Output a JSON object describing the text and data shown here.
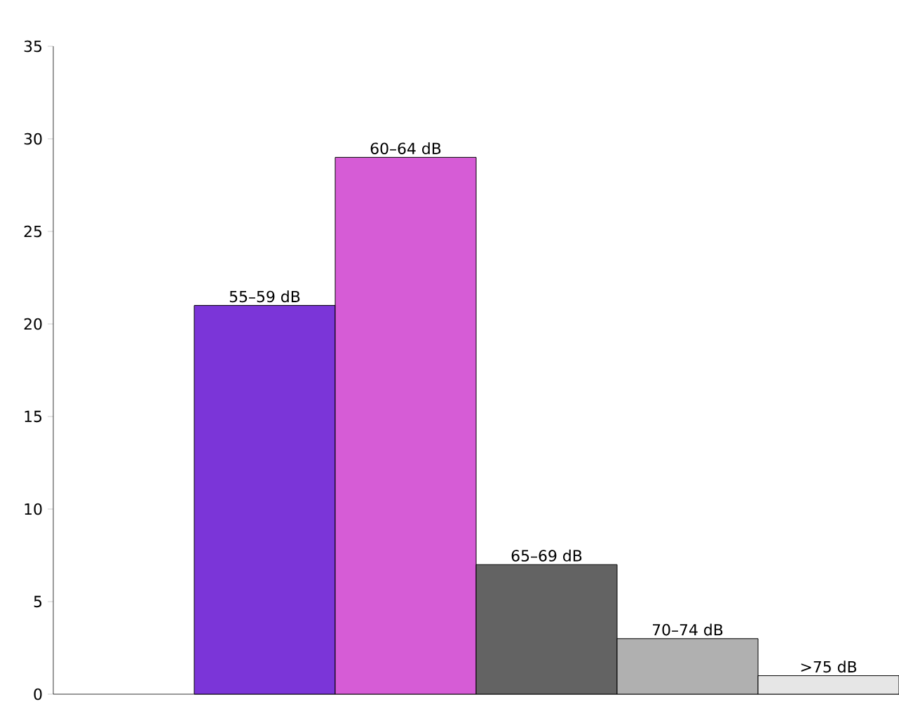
{
  "chart_data": {
    "type": "bar",
    "categories": [
      null,
      "55–59 dB",
      "60–64 dB",
      "65–69 dB",
      "70–74 dB",
      ">75 dB"
    ],
    "values": [
      null,
      21,
      29,
      7,
      3,
      1
    ],
    "colors": [
      null,
      "#7b35d8",
      "#d65cd6",
      "#636363",
      "#b0b0b0",
      "#e6e6e6"
    ],
    "ylim": [
      0,
      35
    ],
    "yticks": [
      0,
      5,
      10,
      15,
      20,
      25,
      30,
      35
    ],
    "grid": false
  }
}
